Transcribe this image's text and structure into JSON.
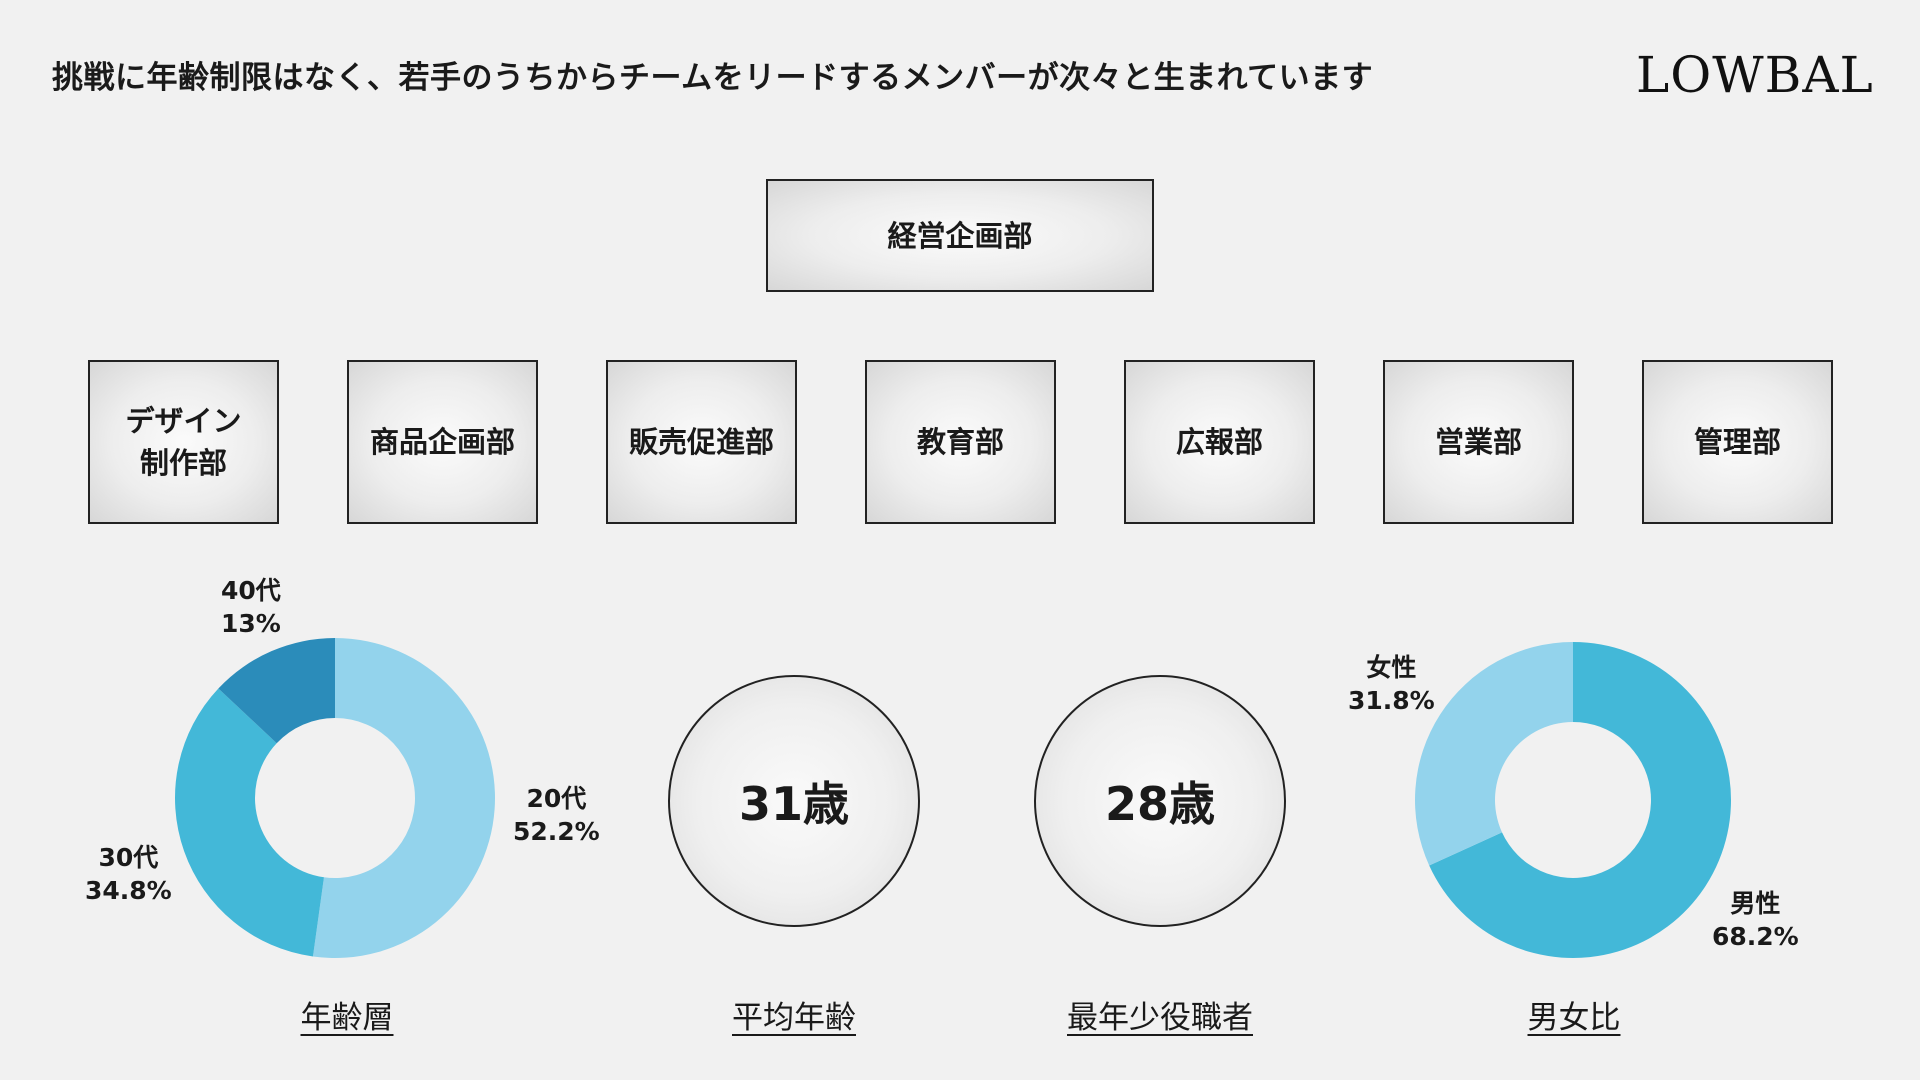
{
  "header": {
    "headline": "挑戦に年齢制限はなく、若手のうちからチームをリードするメンバーが次々と生まれています",
    "logo_text": "LOWBAL"
  },
  "org": {
    "top": "経営企画部",
    "departments": [
      [
        "デザイン",
        "制作部"
      ],
      [
        "商品企画部"
      ],
      [
        "販売促進部"
      ],
      [
        "教育部"
      ],
      [
        "広報部"
      ],
      [
        "営業部"
      ],
      [
        "管理部"
      ]
    ]
  },
  "stats": {
    "average_age": {
      "value": "31歳",
      "caption": "平均年齢"
    },
    "youngest_manager": {
      "value": "28歳",
      "caption": "最年少役職者"
    }
  },
  "chart_data": [
    {
      "type": "pie",
      "caption": "年齢層",
      "slices": [
        {
          "label": "20代",
          "percent_label": "52.2%",
          "value": 52.2,
          "color": "#93d3ec"
        },
        {
          "label": "30代",
          "percent_label": "34.8%",
          "value": 34.8,
          "color": "#43b8d8"
        },
        {
          "label": "40代",
          "percent_label": "13%",
          "value": 13,
          "color": "#2b8cba"
        }
      ]
    },
    {
      "type": "pie",
      "caption": "男女比",
      "slices": [
        {
          "label": "男性",
          "percent_label": "68.2%",
          "value": 68.2,
          "color": "#43b8d8"
        },
        {
          "label": "女性",
          "percent_label": "31.8%",
          "value": 31.8,
          "color": "#93d3ec"
        }
      ]
    }
  ]
}
